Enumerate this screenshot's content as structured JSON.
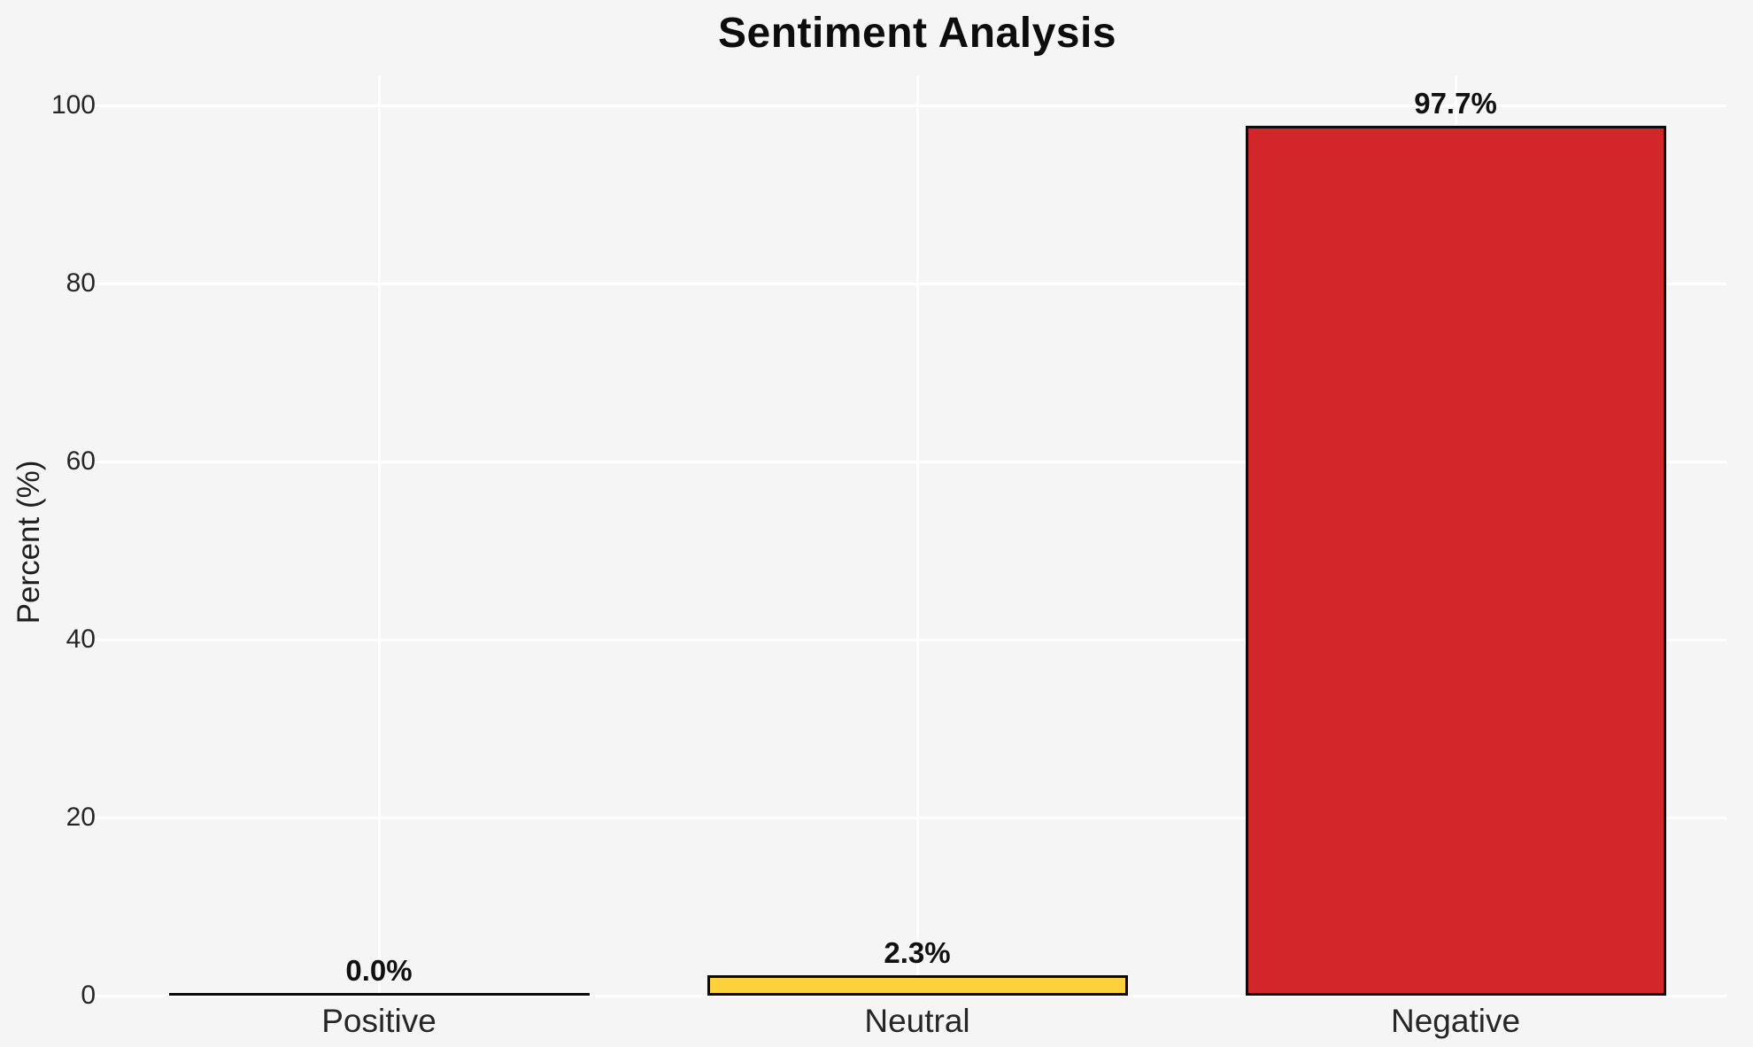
{
  "chart_data": {
    "type": "bar",
    "title": "Sentiment Analysis",
    "ylabel": "Percent (%)",
    "xlabel": "",
    "categories": [
      "Positive",
      "Neutral",
      "Negative"
    ],
    "values": [
      0.0,
      2.3,
      97.7
    ],
    "value_labels": [
      "0.0%",
      "2.3%",
      "97.7%"
    ],
    "bar_colors": [
      null,
      "#fdd13c",
      "#d2262b"
    ],
    "bar_edge_color": "#0a0a0a",
    "yticks": [
      0,
      20,
      40,
      60,
      80,
      100
    ],
    "ylim": [
      0,
      105
    ],
    "grid": true,
    "legend": null,
    "background_color": "#f5f5f6",
    "grid_color": "#ffffff"
  }
}
